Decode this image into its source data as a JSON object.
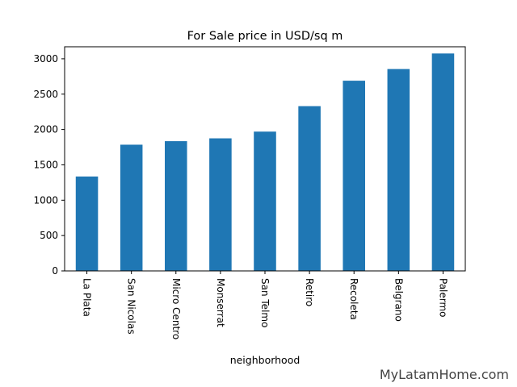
{
  "chart_data": {
    "type": "bar",
    "title": "For Sale price in USD/sq m",
    "xlabel": "neighborhood",
    "ylabel": "",
    "categories": [
      "La Plata",
      "San Nicolas",
      "Micro Centro",
      "Monserrat",
      "San Telmo",
      "Retiro",
      "Recoleta",
      "Belgrano",
      "Palermo"
    ],
    "values": [
      1335,
      1785,
      1835,
      1875,
      1970,
      2330,
      2690,
      2855,
      3075
    ],
    "ylim": [
      0,
      3170
    ],
    "yticks": [
      0,
      500,
      1000,
      1500,
      2000,
      2500,
      3000
    ],
    "bar_color": "#1f77b4",
    "grid": false,
    "legend": false
  },
  "watermark": "MyLatamHome.com"
}
